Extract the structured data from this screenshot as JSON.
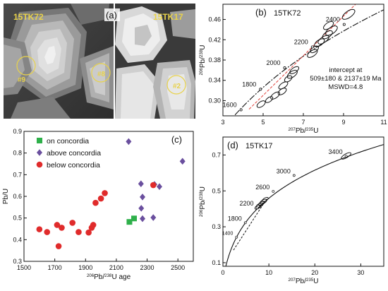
{
  "panel_a": {
    "label": "(a)",
    "sample_left": "15TK72",
    "sample_right": "15TK17",
    "spots": [
      "#9",
      "#8",
      "#2"
    ]
  },
  "chart_data": [
    {
      "type": "scatter",
      "panel": "(b)",
      "sample": "15TK72",
      "xlabel_parts": [
        "207",
        "Pb/",
        "235",
        "U"
      ],
      "ylabel_parts": [
        "206",
        "Pb/",
        "238",
        "U"
      ],
      "xlim": [
        3,
        11
      ],
      "ylim": [
        0.27,
        0.49
      ],
      "xticks": [
        3,
        5,
        7,
        9,
        11
      ],
      "yticks": [
        0.3,
        0.34,
        0.38,
        0.42,
        0.46
      ],
      "concordia_ages": [
        {
          "label": "1600",
          "x": 3.9,
          "y": 0.2818
        },
        {
          "label": "1800",
          "x": 4.87,
          "y": 0.3225
        },
        {
          "label": "2000",
          "x": 6.07,
          "y": 0.3646
        },
        {
          "label": "2200",
          "x": 7.45,
          "y": 0.4058
        },
        {
          "label": "2400",
          "x": 9.03,
          "y": 0.4502
        }
      ],
      "ellipses": [
        {
          "x": 4.9,
          "y": 0.293,
          "rx": 0.18,
          "ry": 0.007
        },
        {
          "x": 5.3,
          "y": 0.302,
          "rx": 0.16,
          "ry": 0.006
        },
        {
          "x": 5.6,
          "y": 0.31,
          "rx": 0.2,
          "ry": 0.007
        },
        {
          "x": 5.95,
          "y": 0.318,
          "rx": 0.18,
          "ry": 0.007
        },
        {
          "x": 6.0,
          "y": 0.33,
          "rx": 0.2,
          "ry": 0.007
        },
        {
          "x": 6.25,
          "y": 0.343,
          "rx": 0.16,
          "ry": 0.007
        },
        {
          "x": 6.45,
          "y": 0.352,
          "rx": 0.22,
          "ry": 0.008
        },
        {
          "x": 6.55,
          "y": 0.36,
          "rx": 0.2,
          "ry": 0.007
        },
        {
          "x": 7.45,
          "y": 0.393,
          "rx": 0.22,
          "ry": 0.008
        },
        {
          "x": 7.55,
          "y": 0.401,
          "rx": 0.18,
          "ry": 0.007
        },
        {
          "x": 7.8,
          "y": 0.414,
          "rx": 0.22,
          "ry": 0.008
        },
        {
          "x": 8.0,
          "y": 0.42,
          "rx": 0.24,
          "ry": 0.008
        },
        {
          "x": 8.2,
          "y": 0.43,
          "rx": 0.22,
          "ry": 0.008
        },
        {
          "x": 8.4,
          "y": 0.438,
          "rx": 0.26,
          "ry": 0.009
        },
        {
          "x": 8.25,
          "y": 0.448,
          "rx": 0.22,
          "ry": 0.008
        },
        {
          "x": 9.25,
          "y": 0.47,
          "rx": 0.28,
          "ry": 0.009
        }
      ],
      "discordia": {
        "x": [
          4.3,
          9.6
        ],
        "y": [
          0.283,
          0.49
        ]
      },
      "annotation": [
        "intercept at",
        "509±180 & 2137±19 Ma",
        "MSWD=4.8"
      ]
    },
    {
      "type": "scatter",
      "panel": "(c)",
      "xlabel_parts": [
        "206",
        "Pb/",
        "238",
        "U age"
      ],
      "ylabel": "Pb/U",
      "xlim": [
        1500,
        2600
      ],
      "ylim": [
        0.3,
        0.9
      ],
      "xticks": [
        1500,
        1700,
        1900,
        2100,
        2300,
        2500
      ],
      "yticks": [
        0.3,
        0.4,
        0.5,
        0.6,
        0.7,
        0.8,
        0.9
      ],
      "legend_position": "top-left",
      "series": [
        {
          "name": "on concordia",
          "marker": "square",
          "color": "#2eb04a",
          "points": [
            [
              2185,
              0.482
            ],
            [
              2215,
              0.498
            ]
          ]
        },
        {
          "name": "above concordia",
          "marker": "diamond",
          "color": "#6a4f9e",
          "points": [
            [
              2180,
              0.853
            ],
            [
              2260,
              0.658
            ],
            [
              2270,
              0.597
            ],
            [
              2262,
              0.545
            ],
            [
              2270,
              0.497
            ],
            [
              2340,
              0.502
            ],
            [
              2348,
              0.655
            ],
            [
              2380,
              0.645
            ],
            [
              2530,
              0.762
            ]
          ]
        },
        {
          "name": "below concordia",
          "marker": "circle",
          "color": "#e02b2b",
          "points": [
            [
              1600,
              0.448
            ],
            [
              1650,
              0.435
            ],
            [
              1715,
              0.468
            ],
            [
              1725,
              0.37
            ],
            [
              1745,
              0.455
            ],
            [
              1815,
              0.478
            ],
            [
              1855,
              0.435
            ],
            [
              1920,
              0.433
            ],
            [
              1940,
              0.455
            ],
            [
              1950,
              0.468
            ],
            [
              1965,
              0.57
            ],
            [
              2000,
              0.59
            ],
            [
              2025,
              0.615
            ],
            [
              2340,
              0.652
            ]
          ]
        }
      ]
    },
    {
      "type": "scatter",
      "panel": "(d)",
      "sample": "15TK17",
      "xlabel_parts": [
        "207",
        "Pb/",
        "235",
        "U"
      ],
      "ylabel_parts": [
        "206",
        "Pb/",
        "238",
        "U"
      ],
      "xlim": [
        0,
        35
      ],
      "ylim": [
        0.08,
        0.8
      ],
      "xticks": [
        0,
        10,
        20,
        30
      ],
      "yticks": [
        0.1,
        0.3,
        0.5,
        0.7
      ],
      "concordia_ages": [
        {
          "label": "1400",
          "x": 2.97,
          "y": 0.2425
        },
        {
          "label": "1800",
          "x": 4.87,
          "y": 0.3225
        },
        {
          "label": "2200",
          "x": 7.45,
          "y": 0.4058
        },
        {
          "label": "2600",
          "x": 10.94,
          "y": 0.4973
        },
        {
          "label": "3000",
          "x": 15.48,
          "y": 0.586
        },
        {
          "label": "3400",
          "x": 26.8,
          "y": 0.693
        }
      ],
      "ellipses": [
        {
          "x": 7.6,
          "y": 0.41,
          "rx": 0.6,
          "ry": 0.01
        },
        {
          "x": 8.0,
          "y": 0.42,
          "rx": 0.7,
          "ry": 0.011
        },
        {
          "x": 8.4,
          "y": 0.43,
          "rx": 0.6,
          "ry": 0.01
        },
        {
          "x": 8.8,
          "y": 0.44,
          "rx": 0.7,
          "ry": 0.011
        },
        {
          "x": 9.2,
          "y": 0.452,
          "rx": 0.6,
          "ry": 0.01
        },
        {
          "x": 26.8,
          "y": 0.695,
          "rx": 1.0,
          "ry": 0.012
        }
      ],
      "discordia": {
        "x": [
          2.3,
          9.5
        ],
        "y": [
          0.17,
          0.455
        ]
      }
    }
  ]
}
